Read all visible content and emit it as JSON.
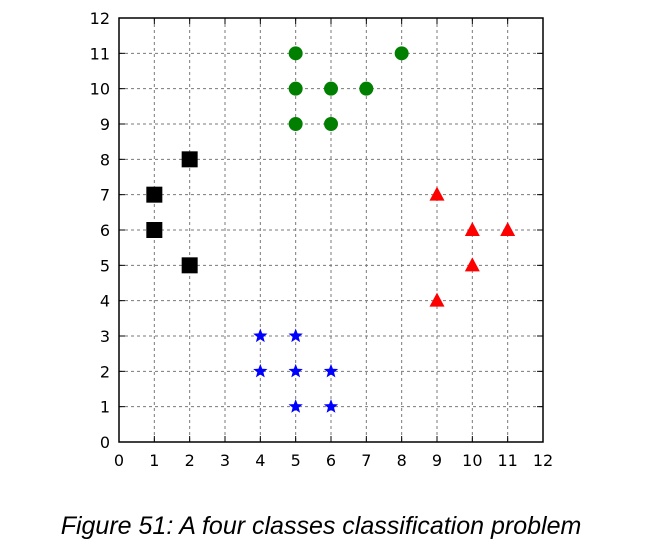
{
  "chart_data": {
    "type": "scatter",
    "title": "",
    "xlabel": "",
    "ylabel": "",
    "xlim": [
      0,
      12
    ],
    "ylim": [
      0,
      12
    ],
    "xticks": [
      "0",
      "1",
      "2",
      "3",
      "4",
      "5",
      "6",
      "7",
      "8",
      "9",
      "10",
      "11",
      "12"
    ],
    "yticks": [
      "0",
      "1",
      "2",
      "3",
      "4",
      "5",
      "6",
      "7",
      "8",
      "9",
      "10",
      "11",
      "12"
    ],
    "grid": true,
    "series": [
      {
        "marker": "circle",
        "color": "#007f00",
        "points": [
          [
            5,
            11
          ],
          [
            8,
            11
          ],
          [
            5,
            10
          ],
          [
            6,
            10
          ],
          [
            7,
            10
          ],
          [
            5,
            9
          ],
          [
            6,
            9
          ]
        ]
      },
      {
        "marker": "square",
        "color": "#000000",
        "points": [
          [
            2,
            8
          ],
          [
            1,
            7
          ],
          [
            1,
            6
          ],
          [
            2,
            5
          ]
        ]
      },
      {
        "marker": "triangle",
        "color": "#ff0000",
        "points": [
          [
            9,
            7
          ],
          [
            10,
            6
          ],
          [
            11,
            6
          ],
          [
            10,
            5
          ],
          [
            9,
            4
          ]
        ]
      },
      {
        "marker": "star",
        "color": "#0000ff",
        "points": [
          [
            4,
            3
          ],
          [
            5,
            3
          ],
          [
            4,
            2
          ],
          [
            5,
            2
          ],
          [
            6,
            2
          ],
          [
            5,
            1
          ],
          [
            6,
            1
          ]
        ]
      }
    ]
  },
  "caption": "Figure 51: A four classes classification problem"
}
